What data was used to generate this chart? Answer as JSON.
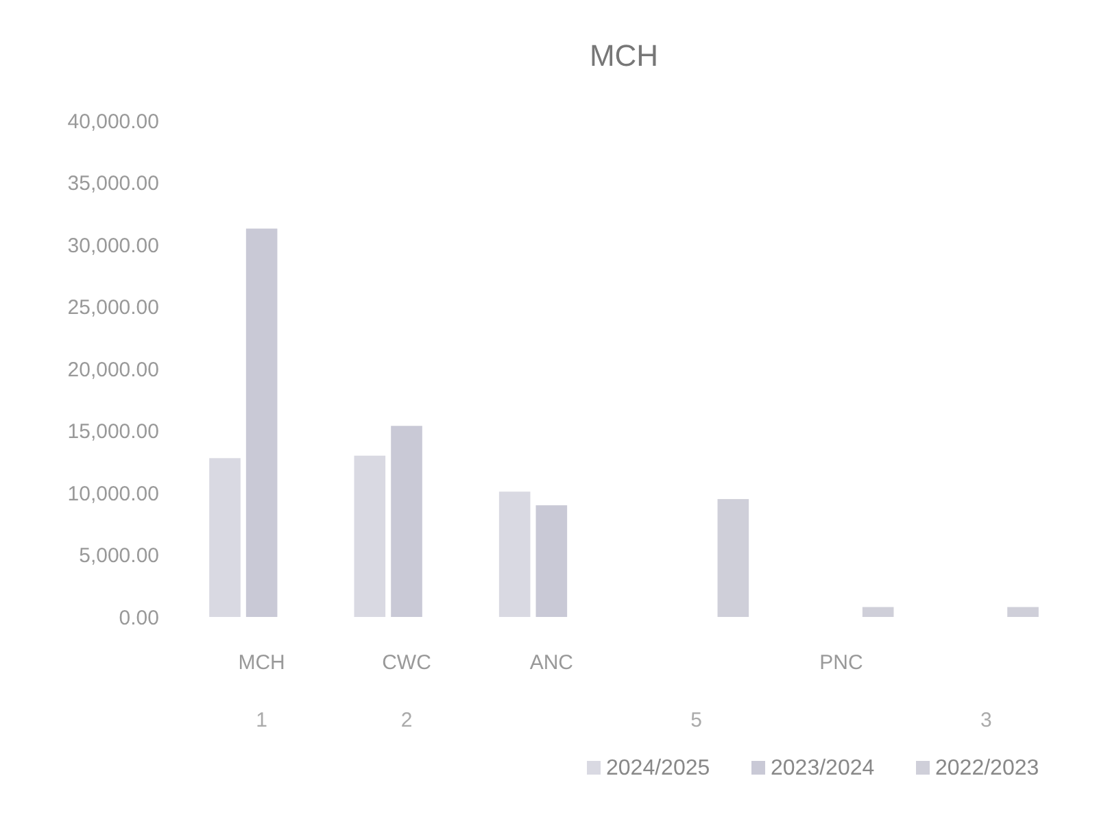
{
  "chart_data": {
    "type": "bar",
    "title": "MCH",
    "categories": [
      "MCH",
      "CWC",
      "ANC",
      null,
      "PNC",
      null
    ],
    "series": [
      {
        "name": "2024/2025",
        "color": "#d9d9e2",
        "values": [
          12800,
          13000,
          10100,
          null,
          null,
          null
        ]
      },
      {
        "name": "2023/2024",
        "color": "#c9c9d6",
        "values": [
          31300,
          15400,
          9000,
          null,
          null,
          null
        ]
      },
      {
        "name": "2022/2023",
        "color": "#cfcfd9",
        "values": [
          null,
          null,
          null,
          9500,
          800,
          800
        ]
      }
    ],
    "ylim": [
      0,
      40000
    ],
    "yticks": [
      {
        "value": 0,
        "label": "0.00"
      },
      {
        "value": 5000,
        "label": "5,000.00"
      },
      {
        "value": 10000,
        "label": "10,000.00"
      },
      {
        "value": 15000,
        "label": "15,000.00"
      },
      {
        "value": 20000,
        "label": "20,000.00"
      },
      {
        "value": 25000,
        "label": "25,000.00"
      },
      {
        "value": 30000,
        "label": "30,000.00"
      },
      {
        "value": 35000,
        "label": "35,000.00"
      },
      {
        "value": 40000,
        "label": "40,000.00"
      }
    ],
    "annotations": [
      "1",
      "2",
      "5",
      "3"
    ],
    "grid": false,
    "legend": "bottom"
  }
}
